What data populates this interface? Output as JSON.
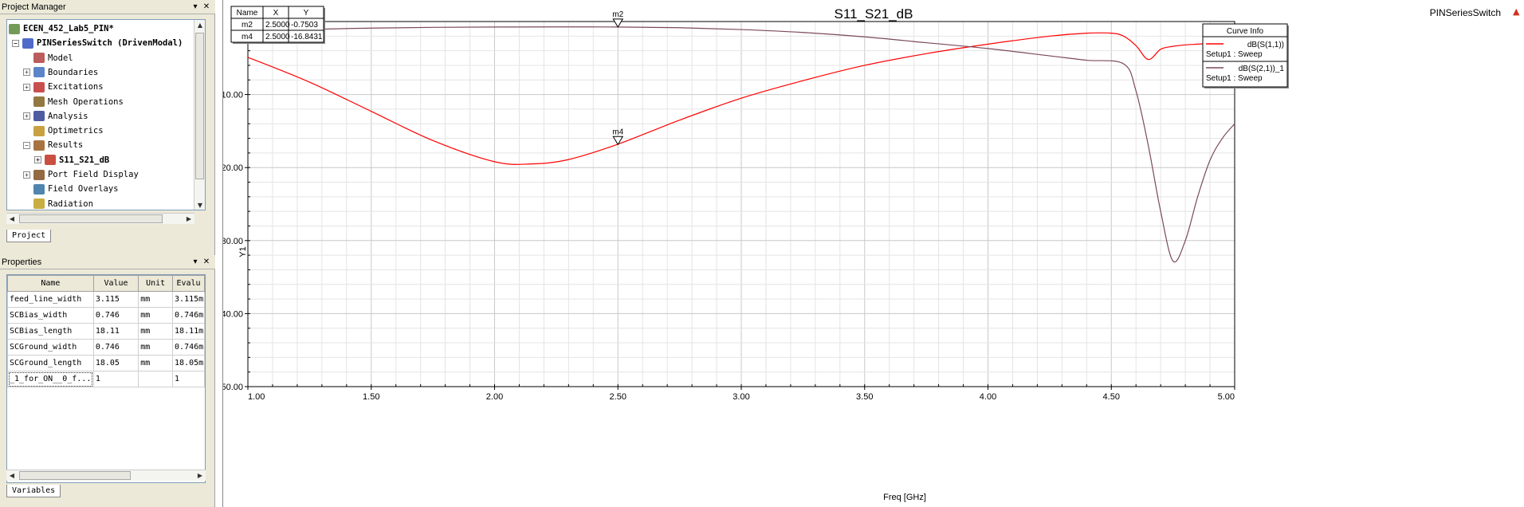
{
  "project_manager": {
    "title": "Project Manager",
    "items": [
      {
        "label": "ECEN_452_Lab5_PIN*",
        "level": 0,
        "bold": true,
        "expander": "minus"
      },
      {
        "label": "PINSeriesSwitch (DrivenModal)",
        "level": 1,
        "bold": true,
        "expander": "minus"
      },
      {
        "label": "Model",
        "level": 2,
        "bold": false,
        "expander": ""
      },
      {
        "label": "Boundaries",
        "level": 2,
        "bold": false,
        "expander": "plus"
      },
      {
        "label": "Excitations",
        "level": 2,
        "bold": false,
        "expander": "plus"
      },
      {
        "label": "Mesh Operations",
        "level": 2,
        "bold": false,
        "expander": ""
      },
      {
        "label": "Analysis",
        "level": 2,
        "bold": false,
        "expander": "plus"
      },
      {
        "label": "Optimetrics",
        "level": 2,
        "bold": false,
        "expander": ""
      },
      {
        "label": "Results",
        "level": 2,
        "bold": false,
        "expander": "minus"
      },
      {
        "label": "S11_S21_dB",
        "level": 3,
        "bold": true,
        "expander": "plus"
      },
      {
        "label": "Port Field Display",
        "level": 2,
        "bold": false,
        "expander": "plus"
      },
      {
        "label": "Field Overlays",
        "level": 2,
        "bold": false,
        "expander": ""
      },
      {
        "label": "Radiation",
        "level": 2,
        "bold": false,
        "expander": ""
      }
    ],
    "tab_label": "Project"
  },
  "properties": {
    "title": "Properties",
    "columns": [
      "Name",
      "Value",
      "Unit",
      "Evalu"
    ],
    "rows": [
      [
        "feed_line_width",
        "3.115",
        "mm",
        "3.115m"
      ],
      [
        "SCBias_width",
        "0.746",
        "mm",
        "0.746m"
      ],
      [
        "SCBias_length",
        "18.11",
        "mm",
        "18.11m"
      ],
      [
        "SCGround_width",
        "0.746",
        "mm",
        "0.746m"
      ],
      [
        "SCGround_length",
        "18.05",
        "mm",
        "18.05m"
      ],
      [
        "_1_for_ON__0_f...",
        "1",
        "",
        "1"
      ]
    ],
    "tab_label": "Variables"
  },
  "report": {
    "title": "S11_S21_dB",
    "design_name": "PINSeriesSwitch",
    "xlabel": "Freq [GHz]",
    "ylabel": "Y1",
    "marker_table": {
      "columns": [
        "Name",
        "X",
        "Y"
      ],
      "rows": [
        [
          "m2",
          "2.5000",
          "-0.7503"
        ],
        [
          "m4",
          "2.5000",
          "-16.8431"
        ]
      ]
    },
    "curve_info": {
      "title": "Curve Info",
      "entries": [
        {
          "name": "dB(S(1,1))",
          "setup": "Setup1 : Sweep",
          "color": "#ff0000"
        },
        {
          "name": "dB(S(2,1))_1",
          "setup": "Setup1 : Sweep",
          "color": "#7a4a5a"
        }
      ]
    }
  },
  "chart_data": {
    "type": "line",
    "title": "S11_S21_dB",
    "xlabel": "Freq [GHz]",
    "ylabel": "Y1",
    "xlim": [
      1.0,
      5.0
    ],
    "ylim": [
      -50.0,
      0.0
    ],
    "x_ticks": [
      "1.00",
      "1.50",
      "2.00",
      "2.50",
      "3.00",
      "3.50",
      "4.00",
      "4.50",
      "5.00"
    ],
    "y_ticks": [
      "-10.00",
      "-20.00",
      "-30.00",
      "-40.00",
      "-50.00"
    ],
    "grid": true,
    "legend": "top-right",
    "series": [
      {
        "name": "dB(S(1,1))",
        "color": "#ff0000",
        "x": [
          1.0,
          1.25,
          1.5,
          1.75,
          2.0,
          2.15,
          2.3,
          2.5,
          2.75,
          3.0,
          3.25,
          3.5,
          3.75,
          4.0,
          4.25,
          4.4,
          4.5,
          4.55,
          4.6,
          4.65,
          4.7,
          4.75,
          4.8,
          4.85,
          4.9,
          5.0
        ],
        "y": [
          -4.9,
          -8.3,
          -12.3,
          -16.3,
          -19.2,
          -19.5,
          -18.9,
          -16.8,
          -13.5,
          -10.5,
          -8.1,
          -6.0,
          -4.4,
          -3.1,
          -2.0,
          -1.6,
          -1.6,
          -2.0,
          -3.3,
          -5.2,
          -3.8,
          -3.4,
          -3.2,
          -3.1,
          -3.0,
          -2.8
        ]
      },
      {
        "name": "dB(S(2,1))_1",
        "color": "#7a4a5a",
        "x": [
          1.0,
          1.25,
          1.5,
          1.75,
          2.0,
          2.25,
          2.5,
          2.75,
          3.0,
          3.25,
          3.5,
          3.75,
          4.0,
          4.25,
          4.4,
          4.55,
          4.6,
          4.65,
          4.7,
          4.75,
          4.8,
          4.85,
          4.9,
          4.95,
          5.0
        ],
        "y": [
          -1.6,
          -1.1,
          -0.9,
          -0.8,
          -0.75,
          -0.74,
          -0.75,
          -0.85,
          -1.1,
          -1.5,
          -2.1,
          -2.9,
          -3.7,
          -4.7,
          -5.3,
          -5.8,
          -9.5,
          -17.0,
          -26.0,
          -32.8,
          -30.0,
          -24.0,
          -19.0,
          -16.0,
          -14.0
        ]
      }
    ],
    "markers": [
      {
        "name": "m2",
        "x": 2.5,
        "y": -0.7503
      },
      {
        "name": "m4",
        "x": 2.5,
        "y": -16.8431
      }
    ]
  }
}
